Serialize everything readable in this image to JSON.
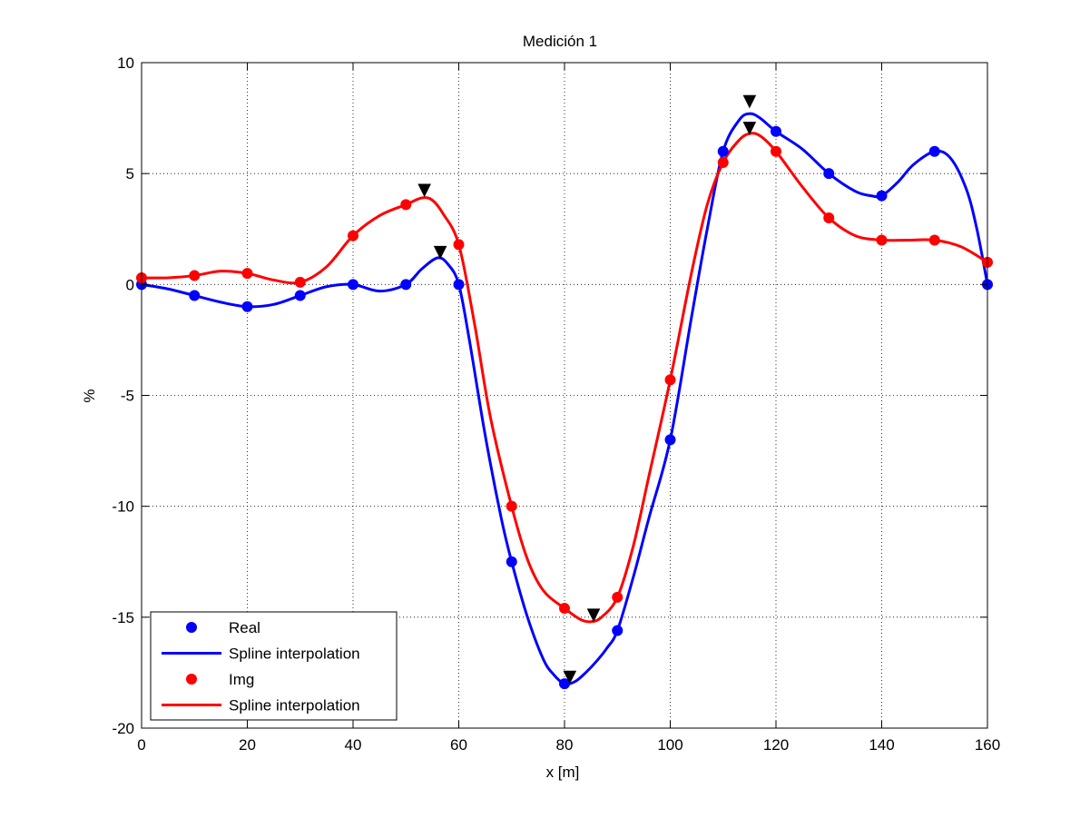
{
  "chart_data": {
    "type": "line",
    "title": "Medición 1",
    "xlabel": "x [m]",
    "ylabel": "%",
    "xlim": [
      0,
      160
    ],
    "ylim": [
      -20,
      10
    ],
    "xticks": [
      0,
      20,
      40,
      60,
      80,
      100,
      120,
      140,
      160
    ],
    "yticks": [
      -20,
      -15,
      -10,
      -5,
      0,
      5,
      10
    ],
    "grid": true,
    "legend_position": "bottom-left",
    "series": [
      {
        "name": "Real",
        "kind": "markers",
        "color": "#0000ff",
        "x": [
          0,
          10,
          20,
          30,
          40,
          50,
          60,
          70,
          80,
          90,
          100,
          110,
          120,
          130,
          140,
          150,
          160
        ],
        "y": [
          0,
          -0.5,
          -1,
          -0.5,
          0,
          0,
          0,
          -12.5,
          -18,
          -15.6,
          -7,
          6,
          6.9,
          5,
          4,
          6,
          0
        ]
      },
      {
        "name": "Spline interpolation",
        "kind": "line",
        "color": "#0000ff",
        "x": [
          0,
          5,
          10,
          15,
          20,
          25,
          30,
          35,
          40,
          45,
          50,
          53,
          56,
          58,
          60,
          62,
          65,
          68,
          70,
          73,
          76,
          78,
          80,
          82,
          84,
          86,
          88,
          90,
          93,
          96,
          100,
          104,
          107,
          110,
          113,
          115,
          117,
          120,
          125,
          130,
          135,
          138,
          140,
          143,
          146,
          150,
          153,
          156,
          158,
          160
        ],
        "y": [
          0,
          -0.2,
          -0.5,
          -0.8,
          -1,
          -0.9,
          -0.5,
          -0.1,
          0,
          -0.3,
          0,
          0.7,
          1.2,
          0.9,
          0,
          -2.5,
          -6.8,
          -10.5,
          -12.5,
          -15,
          -16.9,
          -17.6,
          -18,
          -17.9,
          -17.5,
          -17,
          -16.4,
          -15.6,
          -13.2,
          -10.5,
          -7,
          -1.5,
          2.5,
          6,
          7.4,
          7.7,
          7.5,
          6.9,
          6.1,
          5,
          4.2,
          4,
          4,
          4.6,
          5.4,
          6,
          5.7,
          4.3,
          2.5,
          0
        ]
      },
      {
        "name": "Img",
        "kind": "markers",
        "color": "#ff0000",
        "x": [
          0,
          10,
          20,
          30,
          40,
          50,
          60,
          70,
          80,
          90,
          100,
          110,
          120,
          130,
          140,
          150,
          160
        ],
        "y": [
          0.3,
          0.4,
          0.5,
          0.1,
          2.2,
          3.6,
          1.8,
          -10,
          -14.6,
          -14.1,
          -4.3,
          5.5,
          6,
          3,
          2,
          2,
          1
        ]
      },
      {
        "name": "Spline interpolation",
        "kind": "line",
        "color": "#ff0000",
        "x": [
          0,
          5,
          10,
          15,
          20,
          25,
          30,
          35,
          40,
          45,
          50,
          53,
          55,
          57,
          60,
          63,
          66,
          70,
          73,
          76,
          80,
          83,
          85,
          87,
          90,
          93,
          96,
          100,
          104,
          107,
          110,
          113,
          115,
          117,
          120,
          125,
          130,
          135,
          140,
          145,
          150,
          155,
          160
        ],
        "y": [
          0.3,
          0.3,
          0.4,
          0.6,
          0.5,
          0.2,
          0.1,
          0.8,
          2.2,
          3.1,
          3.6,
          3.9,
          3.8,
          3.2,
          1.8,
          -1.8,
          -6,
          -10,
          -12.4,
          -13.8,
          -14.6,
          -15.1,
          -15.2,
          -15,
          -14.1,
          -11.8,
          -8.6,
          -4.3,
          0.5,
          3.6,
          5.5,
          6.5,
          6.8,
          6.7,
          6,
          4.4,
          3,
          2.2,
          2,
          2,
          2,
          1.7,
          1
        ]
      }
    ],
    "annotations": {
      "type": "triangle-down-markers",
      "color": "#000000",
      "points": [
        {
          "x": 53.5,
          "y": 4.25
        },
        {
          "x": 56.5,
          "y": 1.45
        },
        {
          "x": 81,
          "y": -17.7
        },
        {
          "x": 85.5,
          "y": -14.9
        },
        {
          "x": 115,
          "y": 8.25
        },
        {
          "x": 115,
          "y": 7.05
        }
      ]
    }
  }
}
